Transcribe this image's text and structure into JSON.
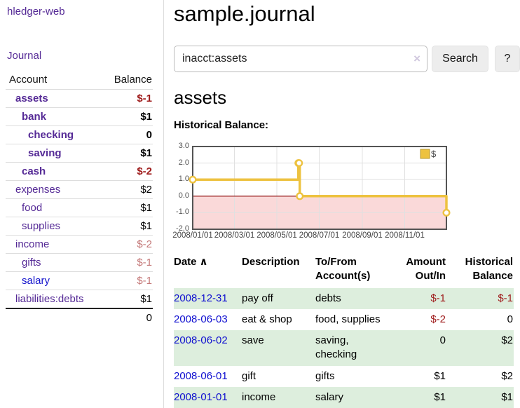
{
  "app": {
    "title": "hledger-web"
  },
  "sidebar": {
    "journal_link": "Journal",
    "headers": [
      "Account",
      "Balance"
    ],
    "accounts": [
      {
        "name": "assets",
        "depth": 1,
        "bold": true,
        "balance": "$-1",
        "neg": true,
        "link": "purple"
      },
      {
        "name": "bank",
        "depth": 2,
        "bold": true,
        "balance": "$1",
        "neg": false,
        "link": "purple"
      },
      {
        "name": "checking",
        "depth": 3,
        "bold": true,
        "balance": "0",
        "neg": false,
        "link": "purple"
      },
      {
        "name": "saving",
        "depth": 3,
        "bold": true,
        "balance": "$1",
        "neg": false,
        "link": "purple"
      },
      {
        "name": "cash",
        "depth": 2,
        "bold": true,
        "balance": "$-2",
        "neg": true,
        "link": "purple"
      },
      {
        "name": "expenses",
        "depth": 1,
        "bold": false,
        "balance": "$2",
        "neg": false,
        "link": "purple"
      },
      {
        "name": "food",
        "depth": 2,
        "bold": false,
        "balance": "$1",
        "neg": false,
        "link": "purple"
      },
      {
        "name": "supplies",
        "depth": 2,
        "bold": false,
        "balance": "$1",
        "neg": false,
        "link": "purple"
      },
      {
        "name": "income",
        "depth": 1,
        "bold": false,
        "balance": "$-2",
        "neg": true,
        "link": "purple"
      },
      {
        "name": "gifts",
        "depth": 2,
        "bold": false,
        "balance": "$-1",
        "neg": true,
        "link": "purple"
      },
      {
        "name": "salary",
        "depth": 2,
        "bold": false,
        "balance": "$-1",
        "neg": true,
        "link": "blue"
      },
      {
        "name": "liabilities:debts",
        "depth": 1,
        "bold": false,
        "balance": "$1",
        "neg": false,
        "link": "purple"
      }
    ],
    "total": "0"
  },
  "main": {
    "title": "sample.journal",
    "search": {
      "value": "inacct:assets",
      "clear_icon": "×",
      "button": "Search",
      "help_button": "?"
    },
    "section_title": "assets",
    "chart_label": "Historical Balance:"
  },
  "chart_data": {
    "type": "line",
    "step": true,
    "title": "Historical Balance:",
    "series": [
      {
        "name": "$",
        "color": "#edc240",
        "points": [
          [
            "2008-01-01",
            1
          ],
          [
            "2008-06-01",
            2
          ],
          [
            "2008-06-02",
            2
          ],
          [
            "2008-06-03",
            0
          ],
          [
            "2008-12-31",
            -1
          ]
        ]
      }
    ],
    "x_range": [
      "2008-01-01",
      "2008-12-31"
    ],
    "x_ticks": [
      "2008/01/01",
      "2008/03/01",
      "2008/05/01",
      "2008/07/01",
      "2008/09/01",
      "2008/11/01"
    ],
    "y_ticks": [
      3,
      2,
      1,
      0,
      -1,
      -2
    ],
    "ylim": [
      -2,
      3
    ],
    "grid": true,
    "legend": {
      "label": "$",
      "position": "top-right"
    },
    "colors": {
      "line": "#edc240",
      "marker_fill": "#ffffff",
      "negative_region": "#fad9d9",
      "zero_line": "#8b0000",
      "gridline": "#e0e0e0",
      "border": "#545454",
      "tick_text": "#545454"
    }
  },
  "register": {
    "sort_icon": "∧",
    "headers": [
      "Date",
      "Description",
      "To/From Account(s)",
      "Amount Out/In",
      "Historical Balance"
    ],
    "rows": [
      {
        "date": "2008-12-31",
        "description": "pay off",
        "accounts": "debts",
        "amount": "$-1",
        "amount_neg": true,
        "balance": "$-1",
        "balance_neg": true
      },
      {
        "date": "2008-06-03",
        "description": "eat & shop",
        "accounts": "food, supplies",
        "amount": "$-2",
        "amount_neg": true,
        "balance": "0",
        "balance_neg": false
      },
      {
        "date": "2008-06-02",
        "description": "save",
        "accounts": "saving, checking",
        "amount": "0",
        "amount_neg": false,
        "balance": "$2",
        "balance_neg": false
      },
      {
        "date": "2008-06-01",
        "description": "gift",
        "accounts": "gifts",
        "amount": "$1",
        "amount_neg": false,
        "balance": "$2",
        "balance_neg": false
      },
      {
        "date": "2008-01-01",
        "description": "income",
        "accounts": "salary",
        "amount": "$1",
        "amount_neg": false,
        "balance": "$1",
        "balance_neg": false
      }
    ]
  }
}
